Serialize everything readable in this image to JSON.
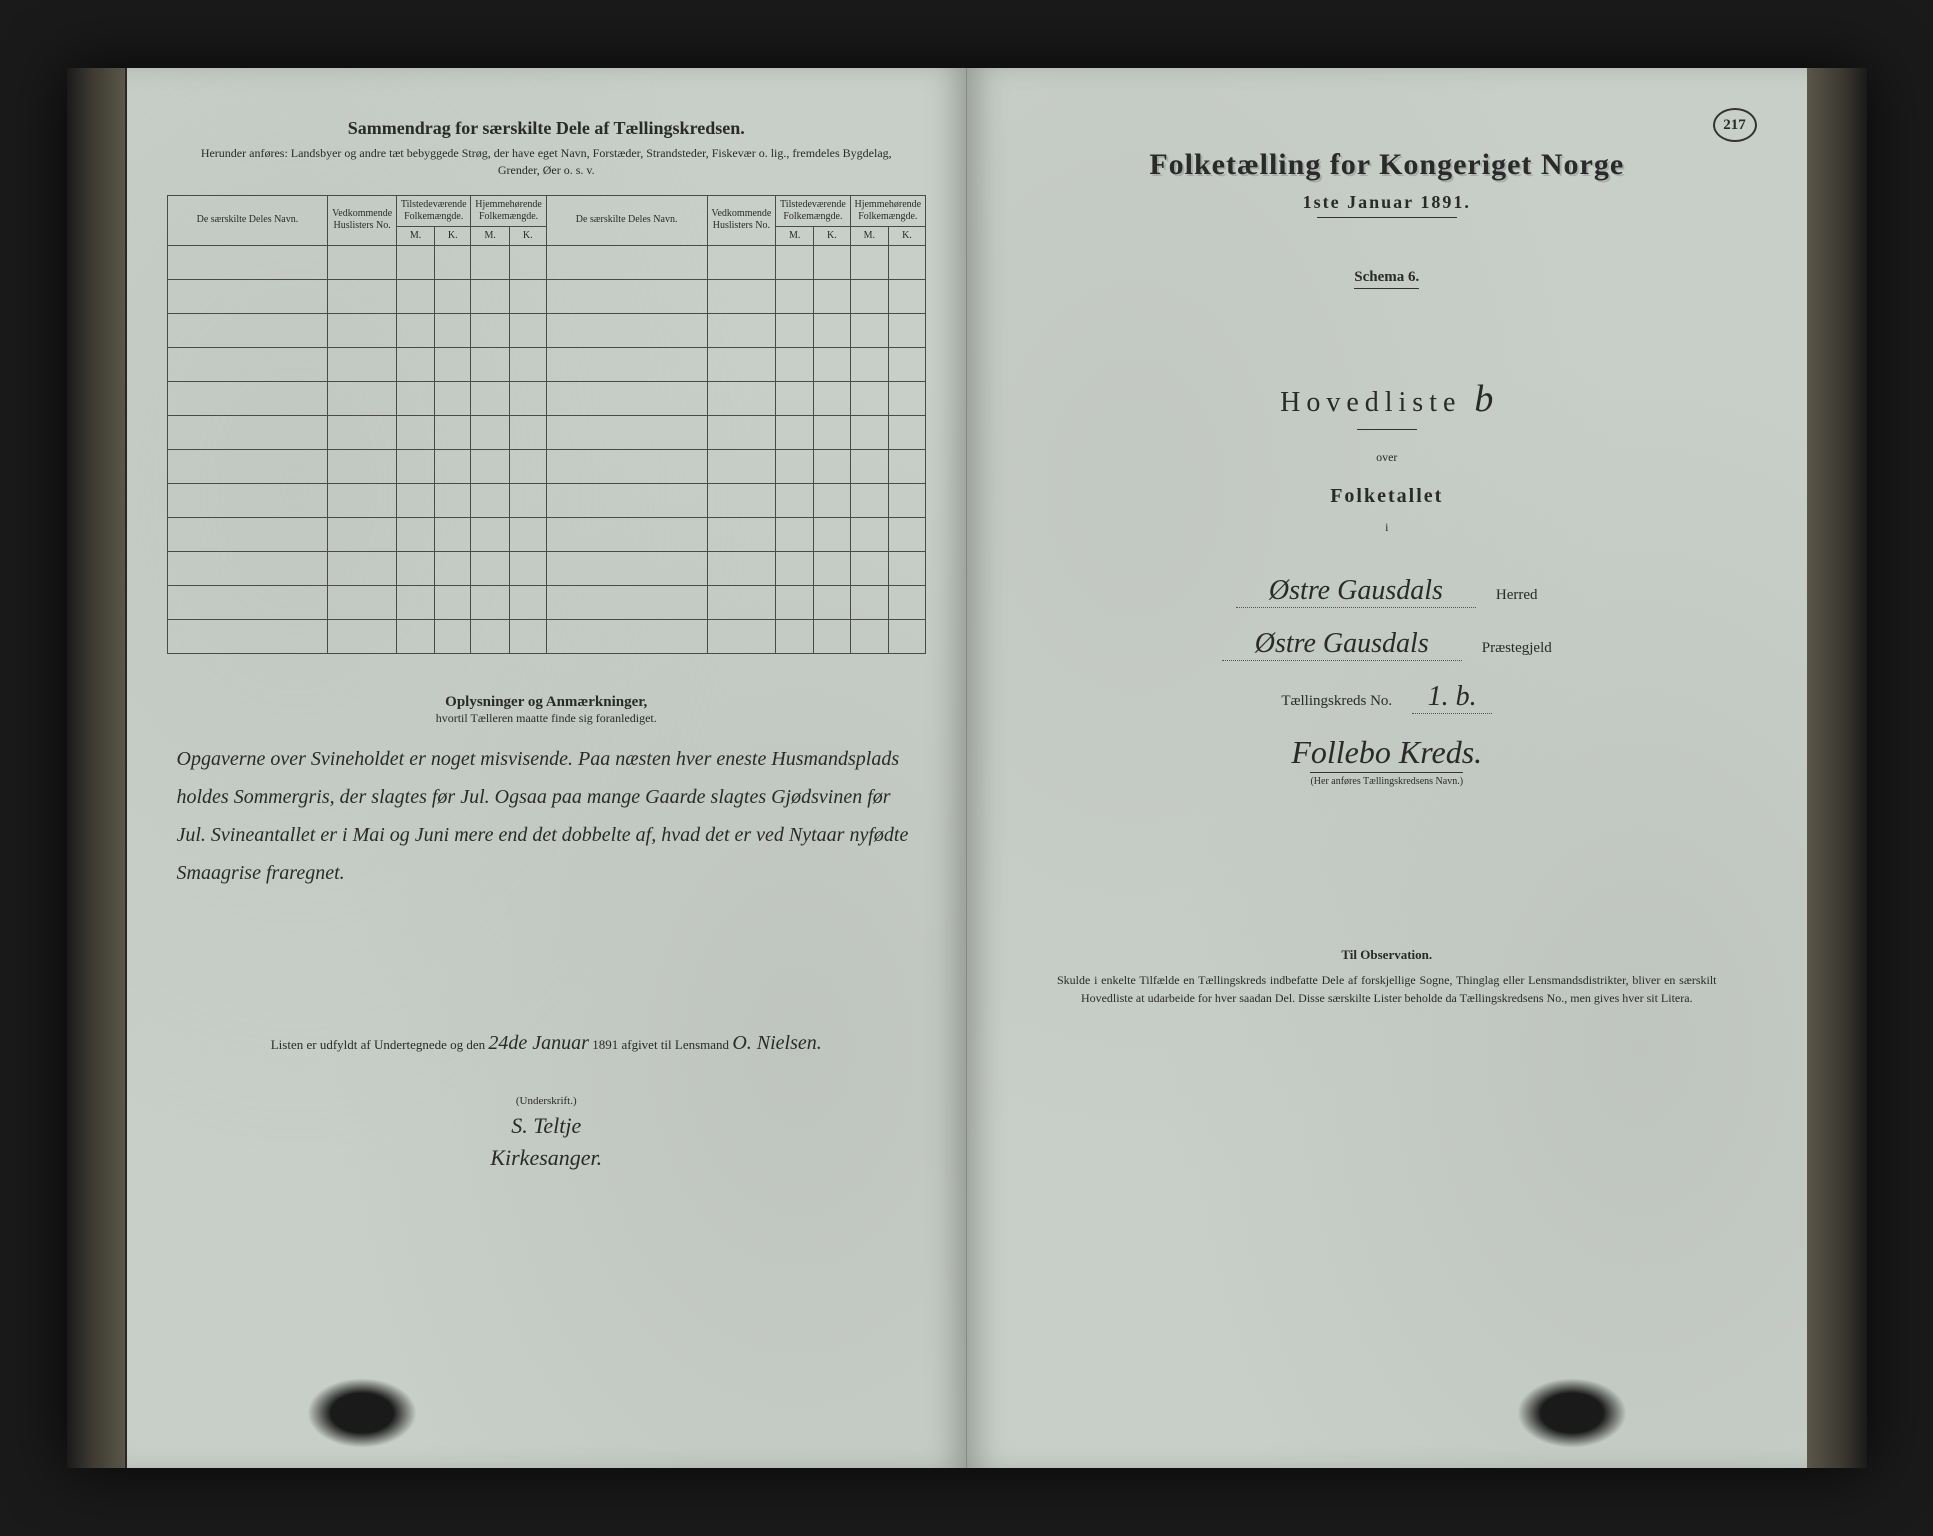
{
  "colors": {
    "page_bg": "#c8cec8",
    "ink": "#2a2a2a",
    "table_border": "#4a4a4a",
    "outer_bg": "#1a1a1a"
  },
  "left": {
    "title": "Sammendrag for særskilte Dele af Tællingskredsen.",
    "subtitle": "Herunder anføres: Landsbyer og andre tæt bebyggede Strøg, der have eget Navn, Forstæder, Strandsteder, Fiskevær o. lig., fremdeles Bygdelag, Grender, Øer o. s. v.",
    "table": {
      "headers": {
        "navn": "De særskilte Deles Navn.",
        "huslister": "Vedkommende Huslisters No.",
        "tilstede": "Tilstedeværende Folkemængde.",
        "hjemme": "Hjemmehørende Folkemængde.",
        "m": "M.",
        "k": "K."
      },
      "row_count": 12
    },
    "notes": {
      "heading": "Oplysninger og Anmærkninger,",
      "subheading": "hvortil Tælleren maatte finde sig foranlediget.",
      "handwritten": "Opgaverne over Svineholdet er noget misvisende. Paa næsten hver eneste Husmandsplads holdes Sommergris, der slagtes før Jul. Ogsaa paa mange Gaarde slagtes Gjødsvinen før Jul. Svineantallet er i Mai og Juni mere end det dobbelte af, hvad det er ved Nytaar nyfødte Smaagrise fraregnet."
    },
    "signature": {
      "prefix": "Listen er udfyldt af Undertegnede og den",
      "date_hand": "24de Januar",
      "year": "1891 afgivet til Lensmand",
      "lensmand": "O. Nielsen.",
      "underskrift_label": "(Underskrift.)",
      "sig1": "S. Teltje",
      "sig2": "Kirkesanger."
    }
  },
  "right": {
    "page_number": "217",
    "title": "Folketælling for Kongeriget Norge",
    "date": "1ste Januar 1891.",
    "schema": "Schema 6.",
    "hovedliste": "Hovedliste",
    "hovedliste_letter": "b",
    "over": "over",
    "folketallet": "Folketallet",
    "i": "i",
    "herred_hand": "Østre Gausdals",
    "herred_label": "Herred",
    "praestegjeld_hand": "Østre Gausdals",
    "praestegjeld_label": "Præstegjeld",
    "kreds_no_label": "Tællingskreds No.",
    "kreds_no_hand": "1. b.",
    "kreds_name": "Follebo Kreds.",
    "kreds_caption": "(Her anføres Tællingskredsens Navn.)",
    "observation": {
      "heading": "Til Observation.",
      "text": "Skulde i enkelte Tilfælde en Tællingskreds indbefatte Dele af forskjellige Sogne, Thinglag eller Lensmandsdistrikter, bliver en særskilt Hovedliste at udarbeide for hver saadan Del. Disse særskilte Lister beholde da Tællingskredsens No., men gives hver sit Litera."
    }
  }
}
